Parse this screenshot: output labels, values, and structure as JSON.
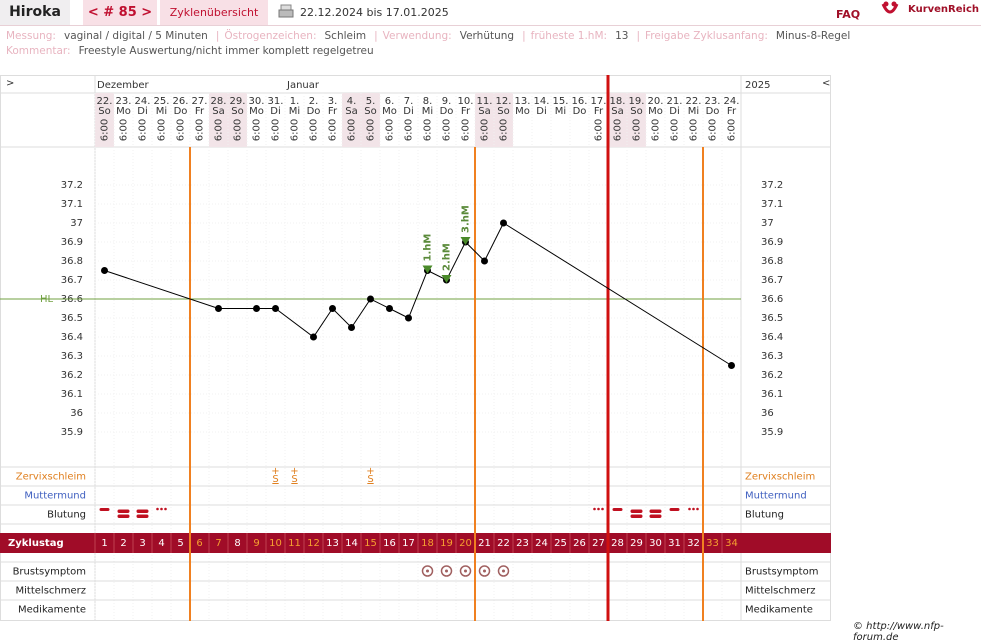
{
  "header": {
    "name": "Hiroka",
    "cycle_nav": "< # 85 >",
    "tab": "Zyklenübersicht",
    "period": "22.12.2024 bis 17.01.2025",
    "faq": "FAQ",
    "brand": "KurvenReich"
  },
  "info": {
    "items": [
      {
        "label": "Messung:",
        "value": "vaginal / digital / 5 Minuten"
      },
      {
        "label": "Östrogenzeichen:",
        "value": "Schleim"
      },
      {
        "label": "Verwendung:",
        "value": "Verhütung"
      },
      {
        "label": "früheste 1.hM:",
        "value": "13"
      },
      {
        "label": "Freigabe Zyklusanfang:",
        "value": "Minus-8-Regel"
      }
    ],
    "separator": "|",
    "comment": {
      "label": "Kommentar:",
      "value": "Freestyle Auswertung/nicht immer komplett regelgetreu"
    }
  },
  "chart_data": {
    "type": "line",
    "nav_left": ">",
    "nav_right": "<",
    "year": "2025",
    "months": [
      {
        "label": "Dezember",
        "day": 1
      },
      {
        "label": "Januar",
        "day": 11
      }
    ],
    "dates": [
      "22.",
      "23.",
      "24.",
      "25.",
      "26.",
      "27.",
      "28.",
      "29.",
      "30.",
      "31.",
      "1.",
      "2.",
      "3.",
      "4.",
      "5.",
      "6.",
      "7.",
      "8.",
      "9.",
      "10.",
      "11.",
      "12.",
      "13.",
      "14.",
      "15.",
      "16.",
      "17.",
      "18.",
      "19.",
      "20.",
      "21.",
      "22.",
      "23.",
      "24."
    ],
    "weekdays": [
      "So",
      "Mo",
      "Di",
      "Mi",
      "Do",
      "Fr",
      "Sa",
      "So",
      "Mo",
      "Di",
      "Mi",
      "Do",
      "Fr",
      "Sa",
      "So",
      "Mo",
      "Di",
      "Mi",
      "Do",
      "Fr",
      "Sa",
      "So",
      "Mo",
      "Di",
      "Mi",
      "Do",
      "Fr",
      "Sa",
      "So",
      "Mo",
      "Di",
      "Mi",
      "Do",
      "Fr"
    ],
    "times": [
      "6:00",
      "6:00",
      "6:00",
      "6:00",
      "6:00",
      "6:00",
      "6:00",
      "6:00",
      "6:00",
      "6:00",
      "6:00",
      "6:00",
      "6:00",
      "6:00",
      "6:00",
      "6:00",
      "6:00",
      "6:00",
      "6:00",
      "6:00",
      "6:00",
      "6:00",
      null,
      null,
      null,
      null,
      "6:00",
      "6:00",
      "6:00",
      "6:00",
      "6:00",
      "6:00",
      "6:00",
      "6:00"
    ],
    "x": [
      1,
      7,
      9,
      10,
      12,
      13,
      14,
      15,
      16,
      17,
      18,
      19,
      20,
      21,
      22,
      34
    ],
    "values": [
      36.75,
      36.55,
      36.55,
      36.55,
      36.4,
      36.55,
      36.45,
      36.6,
      36.55,
      36.5,
      36.75,
      36.7,
      36.9,
      36.8,
      37.0,
      36.25
    ],
    "color": "#000000",
    "ylim": [
      35.8,
      37.4
    ],
    "yticks": [
      35.9,
      36,
      36.1,
      36.2,
      36.3,
      36.4,
      36.5,
      36.6,
      36.7,
      36.8,
      36.9,
      37,
      37.1,
      37.2
    ],
    "hl": {
      "label": "HL",
      "value": 36.6
    },
    "hm": [
      {
        "label": "1.hM",
        "day": 18,
        "value": 36.75
      },
      {
        "label": "2.hM",
        "day": 19,
        "value": 36.7
      },
      {
        "label": "3.hM",
        "day": 20,
        "value": 36.9
      }
    ],
    "phase_lines": [
      5,
      20,
      32
    ],
    "period_line": 27,
    "rows_top": [
      "Zervixschleim",
      "Muttermund",
      "Blutung"
    ],
    "mucus": {
      "symbol": "S",
      "days": [
        10,
        11,
        15
      ]
    },
    "bleeding": {
      "days": [
        1,
        2,
        3,
        4,
        27,
        28,
        29,
        30,
        31,
        32
      ],
      "levels": [
        2,
        3,
        3,
        1,
        1,
        2,
        3,
        3,
        2,
        1
      ]
    },
    "cycle_label": "Zyklustag",
    "cycle_days": [
      1,
      2,
      3,
      4,
      5,
      6,
      7,
      8,
      9,
      10,
      11,
      12,
      13,
      14,
      15,
      16,
      17,
      18,
      19,
      20,
      21,
      22,
      23,
      24,
      25,
      26,
      27,
      28,
      29,
      30,
      31,
      32,
      33,
      34
    ],
    "orange_days": [
      6,
      7,
      9,
      10,
      11,
      12,
      15,
      18,
      19,
      20,
      33,
      34
    ],
    "rows_bottom": [
      "Brustsymptom",
      "Mittelschmerz",
      "Medikamente"
    ],
    "breast_days": [
      18,
      19,
      20,
      21,
      22
    ]
  },
  "footer": "© http://www.nfp-forum.de"
}
